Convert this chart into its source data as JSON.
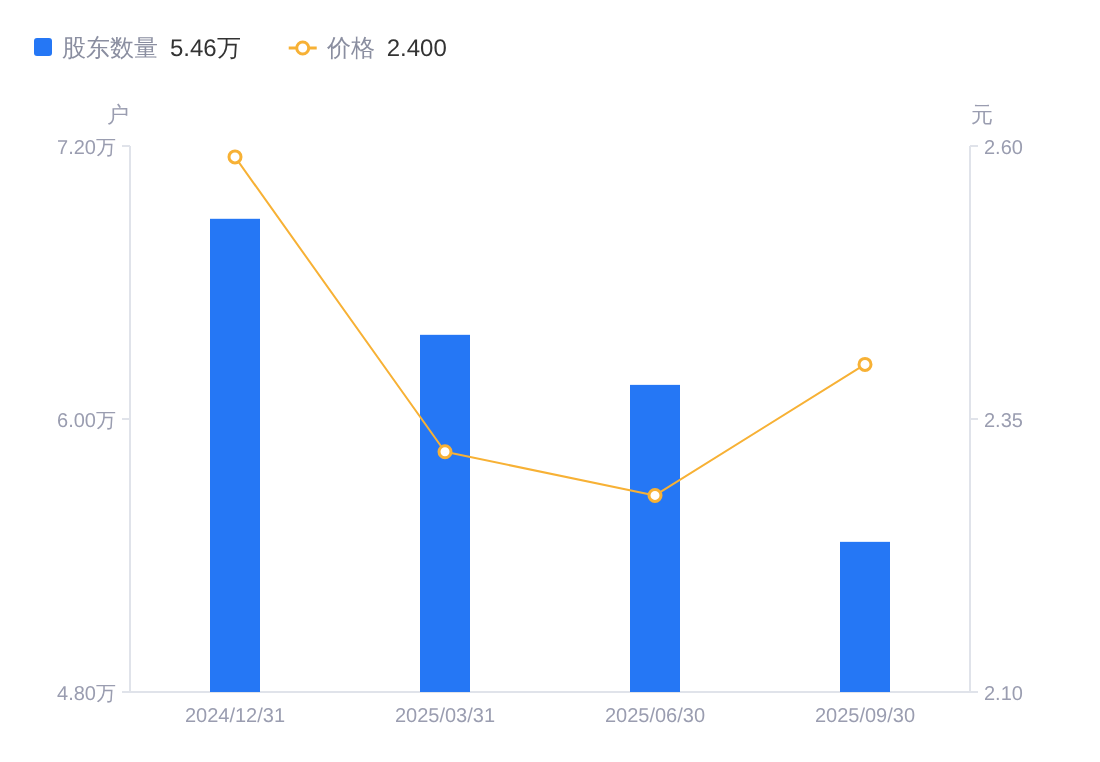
{
  "chart_data": {
    "type": "bar",
    "categories": [
      "2024/12/31",
      "2025/03/31",
      "2025/06/30",
      "2025/09/30"
    ],
    "ylabel": "户",
    "y2label": "元",
    "ylim": [
      4.8,
      7.2
    ],
    "yticks": [
      {
        "value": 4.8,
        "label": "4.80万"
      },
      {
        "value": 6.0,
        "label": "6.00万"
      },
      {
        "value": 7.2,
        "label": "7.20万"
      }
    ],
    "y2lim": [
      2.1,
      2.6
    ],
    "y2ticks": [
      {
        "value": 2.1,
        "label": "2.10"
      },
      {
        "value": 2.35,
        "label": "2.35"
      },
      {
        "value": 2.6,
        "label": "2.60"
      }
    ],
    "series": [
      {
        "name": "股东数量",
        "color": "#2577f5",
        "values": [
          6.88,
          6.37,
          6.15,
          5.46
        ]
      },
      {
        "name": "价格",
        "type": "line",
        "axis": "y2",
        "color": "#f7b135",
        "marker": "circle",
        "values": [
          2.59,
          2.32,
          2.28,
          2.4
        ]
      }
    ],
    "annotations": [
      "5.46万",
      "2.400"
    ],
    "legend": "top left",
    "grid": false
  }
}
